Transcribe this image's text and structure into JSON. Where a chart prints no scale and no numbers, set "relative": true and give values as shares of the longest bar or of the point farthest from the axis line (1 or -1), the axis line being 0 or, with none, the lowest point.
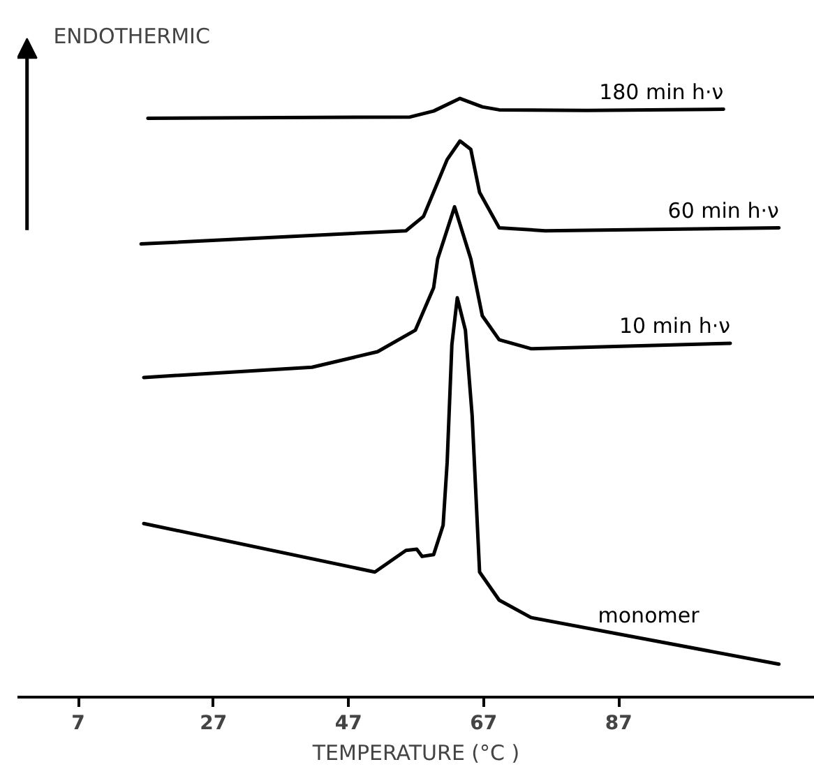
{
  "chart_data": {
    "type": "line",
    "relative": true,
    "xlabel": "TEMPERATURE (°C )",
    "ylabel": "ENDOTHERMIC",
    "xlim": [
      -2,
      116
    ],
    "xticks": [
      7,
      27,
      47,
      67,
      87
    ],
    "line_style": "solid",
    "grid": false,
    "series": [
      {
        "name": "180 min h·ν",
        "color": "#000000",
        "x": [
          17.3,
          36.9,
          56.1,
          59.6,
          63.5,
          66.8,
          69.3,
          82.3,
          102.5
        ],
        "values": [
          0.967,
          0.968,
          0.969,
          0.979,
          1.0,
          0.986,
          0.981,
          0.98,
          0.982
        ]
      },
      {
        "name": "60 min h·ν",
        "color": "#000000",
        "x": [
          16.3,
          55.5,
          58.1,
          61.6,
          63.5,
          65.1,
          66.4,
          69.3,
          76.1,
          110.7
        ],
        "values": [
          0.757,
          0.779,
          0.803,
          0.898,
          0.929,
          0.915,
          0.843,
          0.784,
          0.779,
          0.784
        ]
      },
      {
        "name": "10 min h·ν",
        "color": "#000000",
        "x": [
          16.7,
          41.6,
          51.3,
          56.9,
          59.6,
          60.2,
          62.7,
          65.1,
          66.8,
          69.3,
          74.0,
          103.5
        ],
        "values": [
          0.534,
          0.551,
          0.577,
          0.613,
          0.684,
          0.732,
          0.819,
          0.732,
          0.637,
          0.597,
          0.582,
          0.591
        ]
      },
      {
        "name": "monomer",
        "color": "#000000",
        "x": [
          16.7,
          50.9,
          55.5,
          57.1,
          57.9,
          59.6,
          61.0,
          61.6,
          62.3,
          63.1,
          64.3,
          65.3,
          66.4,
          69.3,
          74.0,
          110.7
        ],
        "values": [
          0.29,
          0.209,
          0.245,
          0.247,
          0.235,
          0.238,
          0.287,
          0.392,
          0.589,
          0.667,
          0.613,
          0.47,
          0.209,
          0.162,
          0.133,
          0.055
        ]
      }
    ]
  }
}
